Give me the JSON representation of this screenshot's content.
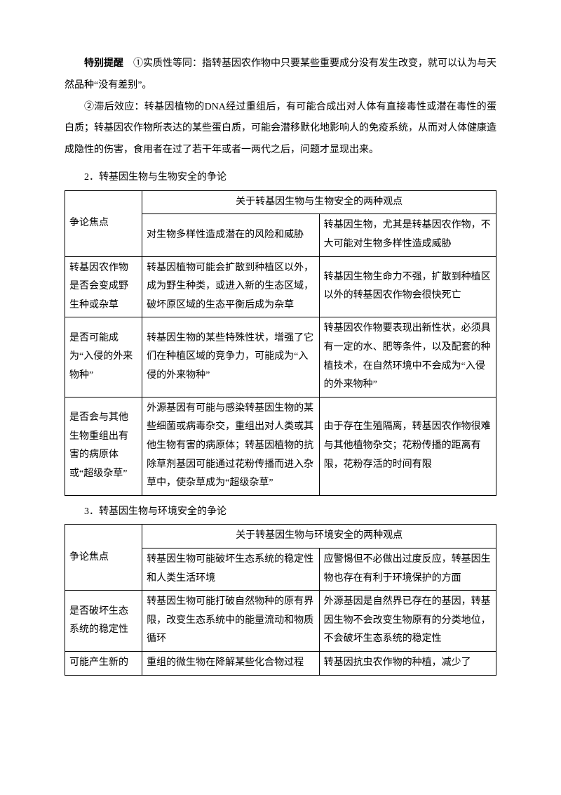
{
  "intro": {
    "heading": "特别提醒",
    "p1_after_heading": "　①实质性等同：指转基因农作物中只要某些重要成分没有发生改变，就可以认为与天然品种“没有差别”。",
    "p2": "②滞后效应：转基因植物的DNA经过重组后，有可能合成出对人体有直接毒性或潜在毒性的蛋白质；转基因农作物所表达的某些蛋白质，可能会潜移默化地影响人的免疫系统，从而对人体健康造成隐性的伤害，食用者在过了若干年或者一两代之后，问题才显现出来。"
  },
  "section2": {
    "title": "2．转基因生物与生物安全的争论",
    "table": {
      "header_span": "关于转基因生物与生物安全的两种观点",
      "left_label": "争论焦点",
      "view_a": "对生物多样性造成潜在的风险和威胁",
      "view_b": "转基因生物，尤其是转基因农作物，不大可能对生物多样性造成威胁",
      "rows": [
        {
          "c1": "转基因农作物是否会变成野生种或杂草",
          "c2": "转基因植物可能会扩散到种植区以外，成为野生种类，或进入新的生态区域，破坏原区域的生态平衡后成为杂草",
          "c3": "转基因生物生命力不强，扩散到种植区以外的转基因农作物会很快死亡"
        },
        {
          "c1": "是否可能成为“入侵的外来物种”",
          "c2": "转基因生物的某些特殊性状，增强了它们在种植区域的竞争力，可能成为“入侵的外来物种”",
          "c3": "转基因农作物要表现出新性状，必须具有一定的水、肥等条件，以及配套的种植技术，在自然环境中不会成为“入侵的外来物种”"
        },
        {
          "c1": "是否会与其他生物重组出有害的病原体或“超级杂草”",
          "c2": "外源基因有可能与感染转基因生物的某些细菌或病毒杂交，重组出对人类或其他生物有害的病原体；转基因植物的抗除草剂基因可能通过花粉传播而进入杂草中，使杂草成为“超级杂草”",
          "c3": "由于存在生殖隔离，转基因农作物很难与其他植物杂交；花粉传播的距离有限，花粉存活的时间有限"
        }
      ]
    }
  },
  "section3": {
    "title": "3．转基因生物与环境安全的争论",
    "table": {
      "header_span": "关于转基因生物与环境安全的两种观点",
      "left_label": "争论焦点",
      "view_a": "转基因生物可能破坏生态系统的稳定性和人类生活环境",
      "view_b": "应警惕但不必做出过度反应，转基因生物也存在有利于环境保护的方面",
      "rows": [
        {
          "c1": "是否破坏生态系统的稳定性",
          "c2": "转基因生物可能打破自然物种的原有界限，改变生态系统中的能量流动和物质循环",
          "c3": "外源基因是自然界已存在的基因，转基因生物不会改变生物原有的分类地位，不会破坏生态系统的稳定性"
        },
        {
          "c1": "可能产生新的",
          "c2": "重组的微生物在降解某些化合物过程",
          "c3": "转基因抗虫农作物的种植，减少了"
        }
      ]
    }
  }
}
